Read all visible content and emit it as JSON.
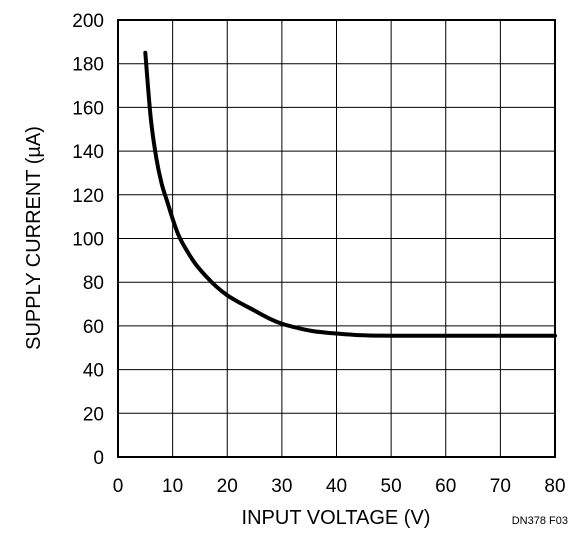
{
  "chart_data": {
    "type": "line",
    "title": "",
    "xlabel": "INPUT VOLTAGE (V)",
    "ylabel": "SUPPLY CURRENT (µA)",
    "xlim": [
      0,
      80
    ],
    "ylim": [
      0,
      200
    ],
    "x_ticks": [
      0,
      10,
      20,
      30,
      40,
      50,
      60,
      70,
      80
    ],
    "y_ticks": [
      0,
      20,
      40,
      60,
      80,
      100,
      120,
      140,
      160,
      180,
      200
    ],
    "grid": true,
    "series": [
      {
        "x": [
          5,
          6,
          7,
          8,
          9,
          10,
          11,
          12,
          14,
          16,
          18,
          20,
          22,
          25,
          28,
          30,
          33,
          36,
          40,
          44,
          50,
          60,
          70,
          80
        ],
        "y": [
          185,
          155,
          137,
          125,
          117,
          109,
          102,
          97,
          89,
          83,
          78,
          74,
          71,
          67,
          63,
          61,
          59,
          57.5,
          56.5,
          55.8,
          55.5,
          55.5,
          55.5,
          55.5
        ]
      }
    ],
    "figure_id": "DN378 F03"
  }
}
